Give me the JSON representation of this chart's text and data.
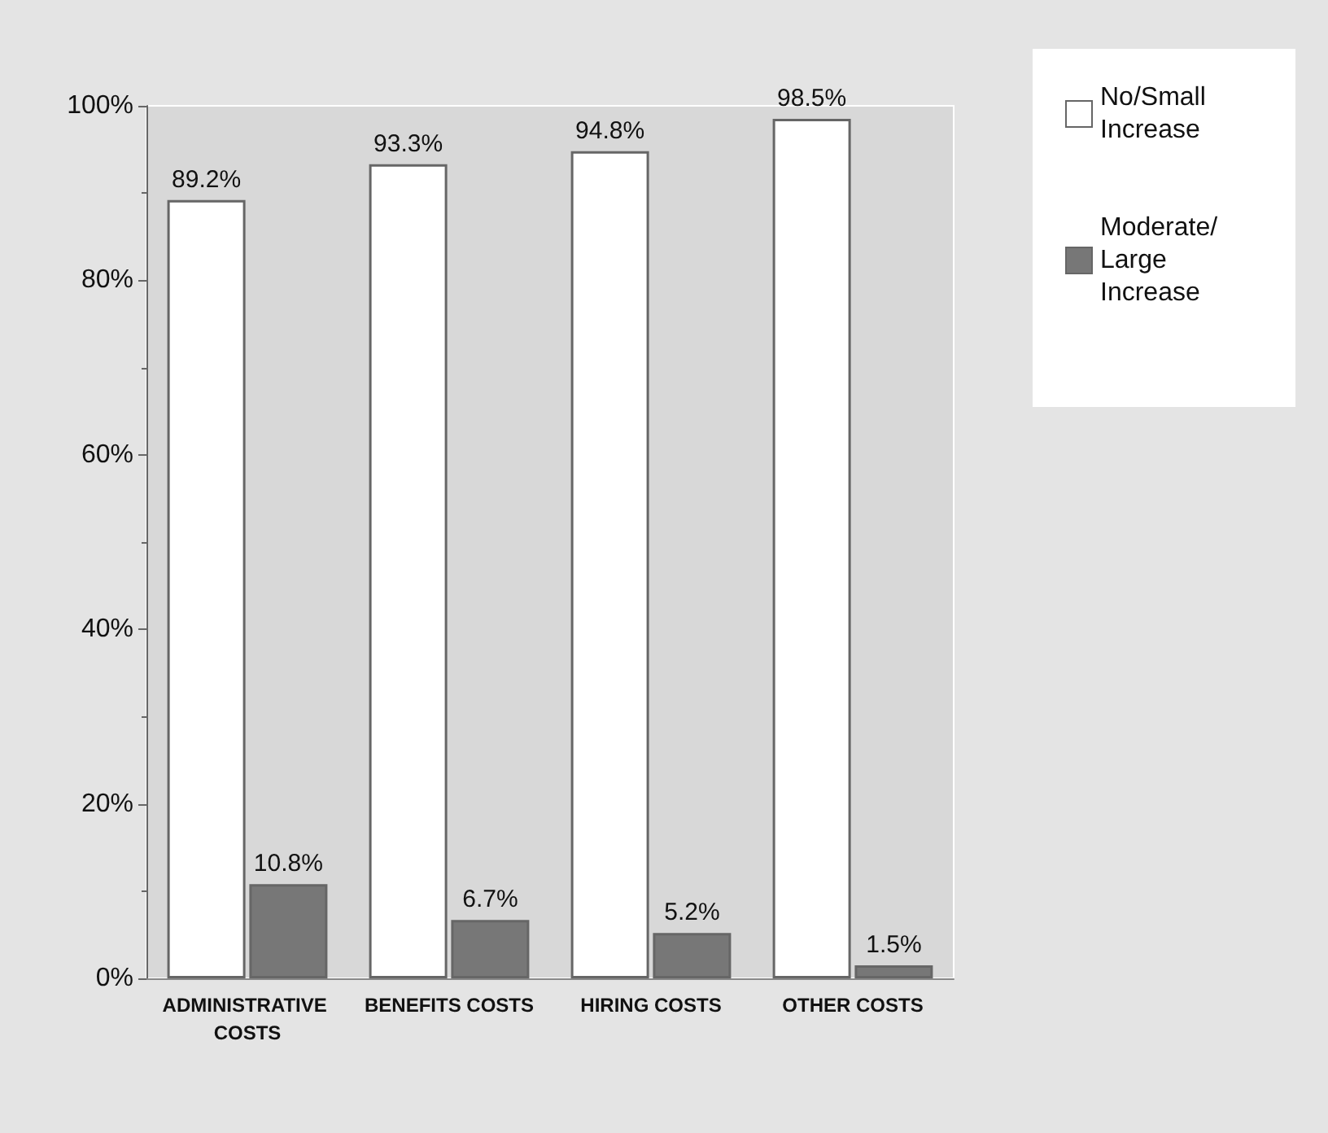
{
  "chart_data": {
    "type": "bar",
    "categories": [
      "ADMINISTRATIVE COSTS",
      "BENEFITS COSTS",
      "HIRING COSTS",
      "OTHER COSTS"
    ],
    "series": [
      {
        "name": "No/Small Increase",
        "color": "#ffffff",
        "values": [
          89.2,
          93.3,
          94.8,
          98.5
        ],
        "value_labels": [
          "89.2%",
          "93.3%",
          "94.8%",
          "98.5%"
        ]
      },
      {
        "name": "Moderate/ Large Increase",
        "color": "#777777",
        "values": [
          10.8,
          6.7,
          5.2,
          1.5
        ],
        "value_labels": [
          "10.8%",
          "6.7%",
          "5.2%",
          "1.5%"
        ]
      }
    ],
    "ylim": [
      0,
      100
    ],
    "yticks": [
      {
        "value": 0,
        "label": "0%"
      },
      {
        "value": 20,
        "label": "20%"
      },
      {
        "value": 40,
        "label": "40%"
      },
      {
        "value": 60,
        "label": "60%"
      },
      {
        "value": 80,
        "label": "80%"
      },
      {
        "value": 100,
        "label": "100%"
      }
    ],
    "grid": false,
    "legend": "top right"
  }
}
